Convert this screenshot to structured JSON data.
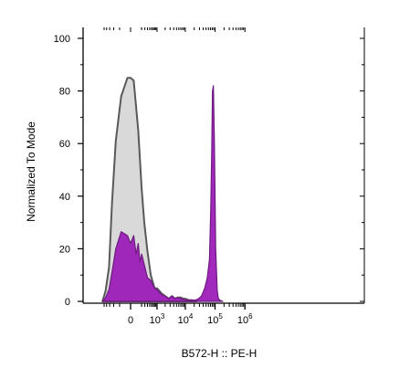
{
  "chart_data": {
    "type": "area",
    "title": "",
    "xlabel": "B572-H :: PE-H",
    "ylabel": "Normalized To Mode",
    "x_scale": "biexponential",
    "xlim": [
      -1500,
      1000000
    ],
    "ylim": [
      0,
      100
    ],
    "y_ticks": [
      {
        "value": 0,
        "label": "0"
      },
      {
        "value": 20,
        "label": "20"
      },
      {
        "value": 40,
        "label": "40"
      },
      {
        "value": 60,
        "label": "60"
      },
      {
        "value": 80,
        "label": "80"
      },
      {
        "value": 100,
        "label": "100"
      }
    ],
    "x_ticks": [
      {
        "value": 0,
        "base": "0",
        "exp": ""
      },
      {
        "value": 1000,
        "base": "10",
        "exp": "3"
      },
      {
        "value": 10000,
        "base": "10",
        "exp": "4"
      },
      {
        "value": 100000,
        "base": "10",
        "exp": "5"
      },
      {
        "value": 1000000,
        "base": "10",
        "exp": "6"
      }
    ],
    "grid": false,
    "legend": "none",
    "series": [
      {
        "role": "control",
        "fill": "#d9d9d9",
        "stroke": "#595959",
        "x": [
          -1160,
          -880,
          -640,
          -480,
          -320,
          -160,
          -40,
          0,
          40,
          120,
          200,
          280,
          400,
          560,
          800,
          1000,
          1500,
          2000,
          2700,
          3500,
          4500,
          5500,
          7000,
          8500,
          10000,
          13000,
          16000,
          20000,
          25000
        ],
        "y": [
          0,
          4,
          13,
          37,
          61,
          78,
          85,
          85,
          84,
          65,
          43,
          30,
          19,
          10,
          5,
          5,
          3,
          2,
          1,
          2,
          1,
          1.5,
          1.5,
          1,
          1,
          0.5,
          0.5,
          0.3,
          0
        ]
      },
      {
        "role": "stained",
        "fill": "#9c1fb8",
        "stroke": "#6e1a80",
        "x": [
          -1160,
          -880,
          -640,
          -480,
          -320,
          -160,
          -40,
          0,
          40,
          80,
          120,
          160,
          200,
          280,
          400,
          560,
          800,
          1000,
          1500,
          2000,
          2700,
          3500,
          4500,
          5500,
          7000,
          8500,
          10000,
          13000,
          17000,
          22000,
          28000,
          35000,
          45000,
          55000,
          65000,
          72000,
          78000,
          82000,
          88000,
          95000,
          105000,
          118000,
          130000,
          150000,
          180000
        ],
        "y": [
          0,
          1.5,
          4.5,
          11,
          20,
          26.5,
          25,
          22,
          25,
          18,
          22,
          15,
          18,
          14,
          9,
          8,
          5,
          4.5,
          2.5,
          2,
          1,
          2,
          1,
          1.5,
          1,
          1,
          0.5,
          0.5,
          0.5,
          0.5,
          1,
          2,
          5,
          9,
          16,
          35,
          60,
          80,
          82,
          60,
          20,
          4,
          1,
          0.3,
          0
        ]
      }
    ]
  }
}
